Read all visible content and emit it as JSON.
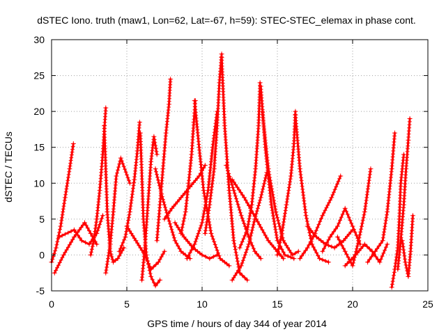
{
  "chart_data": {
    "type": "scatter",
    "title": "dSTEC Iono. truth (maw1, Lon=62, Lat=-67, h=59): STEC-STEC_elemax in phase cont.",
    "xlabel": "GPS time / hours of day 344 of year 2014",
    "ylabel": "dSTEC  / TECUs",
    "xlim": [
      0,
      25
    ],
    "ylim": [
      -5,
      30
    ],
    "xticks": [
      0,
      5,
      10,
      15,
      20,
      25
    ],
    "xtick_labels": [
      "0",
      "5",
      "10",
      "15",
      "20",
      "25"
    ],
    "yticks": [
      -5,
      0,
      5,
      10,
      15,
      20,
      25,
      30
    ],
    "ytick_labels": [
      "-5",
      "0",
      "5",
      "10",
      "15",
      "20",
      "25",
      "30"
    ],
    "grid": true,
    "legend": "none",
    "marker": "plus",
    "color": "#ff0000",
    "series": [
      {
        "x": [
          0.0,
          0.3,
          0.6,
          0.9,
          1.2,
          1.45
        ],
        "y": [
          -1.0,
          1.0,
          4.0,
          8.0,
          12.0,
          15.5
        ]
      },
      {
        "x": [
          0.2,
          0.8,
          1.5,
          2.2,
          2.6,
          3.0
        ],
        "y": [
          -2.5,
          0.0,
          2.5,
          4.5,
          3.0,
          1.5
        ]
      },
      {
        "x": [
          0.5,
          1.5,
          2.0,
          2.5,
          3.0,
          3.4
        ],
        "y": [
          2.5,
          3.5,
          2.0,
          1.5,
          3.0,
          5.5
        ]
      },
      {
        "x": [
          2.6,
          2.8,
          3.0,
          3.2,
          3.4,
          3.6
        ],
        "y": [
          0.0,
          2.0,
          5.0,
          9.0,
          14.0,
          20.5
        ]
      },
      {
        "x": [
          3.5,
          3.7,
          3.9,
          4.1,
          4.4,
          4.8
        ],
        "y": [
          18.0,
          6.0,
          0.5,
          -1.0,
          -0.5,
          1.0
        ]
      },
      {
        "x": [
          3.6,
          3.9,
          4.1,
          4.3,
          4.6,
          5.2
        ],
        "y": [
          -2.5,
          1.5,
          6.0,
          11.0,
          13.5,
          10.0
        ]
      },
      {
        "x": [
          4.5,
          4.9,
          5.2,
          5.5,
          5.7,
          5.85
        ],
        "y": [
          0.5,
          2.5,
          6.0,
          10.5,
          14.5,
          18.5
        ]
      },
      {
        "x": [
          5.9,
          6.1,
          6.3,
          6.6,
          6.9,
          7.2
        ],
        "y": [
          17.0,
          5.0,
          0.0,
          -3.0,
          -4.3,
          -3.5
        ]
      },
      {
        "x": [
          5.0,
          5.6,
          6.2,
          6.6,
          7.1,
          7.5
        ],
        "y": [
          4.0,
          2.0,
          0.0,
          -2.0,
          -1.0,
          0.5
        ]
      },
      {
        "x": [
          6.0,
          6.2,
          6.4,
          6.6,
          6.8,
          7.0
        ],
        "y": [
          -3.5,
          1.0,
          7.0,
          13.0,
          16.5,
          14.0
        ]
      },
      {
        "x": [
          7.0,
          7.2,
          7.4,
          7.6,
          7.8,
          7.9
        ],
        "y": [
          2.0,
          7.0,
          12.0,
          17.0,
          21.0,
          24.5
        ]
      },
      {
        "x": [
          6.9,
          7.3,
          7.7,
          8.2,
          8.6,
          9.2
        ],
        "y": [
          12.0,
          8.5,
          5.5,
          2.0,
          0.5,
          -0.5
        ]
      },
      {
        "x": [
          7.5,
          8.0,
          8.6,
          9.2,
          9.8,
          10.2
        ],
        "y": [
          5.0,
          6.5,
          8.0,
          9.5,
          11.0,
          12.5
        ]
      },
      {
        "x": [
          8.6,
          8.9,
          9.1,
          9.3,
          9.45,
          9.55
        ],
        "y": [
          3.0,
          6.0,
          10.0,
          14.0,
          18.5,
          21.5
        ]
      },
      {
        "x": [
          9.5,
          9.8,
          10.1,
          10.6,
          11.2,
          11.8
        ],
        "y": [
          21.5,
          15.0,
          9.0,
          3.0,
          -0.5,
          -1.5
        ]
      },
      {
        "x": [
          8.2,
          8.8,
          9.4,
          10.0,
          10.5,
          11.0
        ],
        "y": [
          4.5,
          2.5,
          1.0,
          0.0,
          -0.5,
          0.0
        ]
      },
      {
        "x": [
          9.0,
          9.5,
          10.0,
          10.4,
          10.7,
          11.0
        ],
        "y": [
          -0.5,
          1.5,
          4.5,
          9.0,
          15.0,
          20.0
        ]
      },
      {
        "x": [
          10.2,
          10.5,
          10.8,
          11.0,
          11.15,
          11.3
        ],
        "y": [
          3.0,
          7.0,
          12.0,
          18.0,
          24.0,
          28.0
        ]
      },
      {
        "x": [
          11.3,
          11.5,
          11.8,
          12.1,
          12.5,
          13.0
        ],
        "y": [
          27.5,
          18.0,
          9.0,
          2.0,
          -2.5,
          -3.5
        ]
      },
      {
        "x": [
          12.0,
          12.6,
          13.1,
          13.5,
          13.9,
          14.3
        ],
        "y": [
          -3.5,
          -1.5,
          1.5,
          5.0,
          8.0,
          11.5
        ]
      },
      {
        "x": [
          11.6,
          12.1,
          12.6,
          13.1,
          13.5,
          13.9
        ],
        "y": [
          12.5,
          9.0,
          5.5,
          2.5,
          0.5,
          -0.5
        ]
      },
      {
        "x": [
          12.5,
          13.0,
          13.3,
          13.55,
          13.75,
          13.85
        ],
        "y": [
          1.0,
          3.5,
          7.0,
          12.0,
          18.0,
          24.0
        ]
      },
      {
        "x": [
          13.9,
          14.2,
          14.6,
          15.0,
          15.5,
          16.1
        ],
        "y": [
          23.5,
          15.0,
          7.0,
          2.0,
          0.0,
          -0.5
        ]
      },
      {
        "x": [
          14.0,
          14.4,
          14.9,
          15.4,
          16.0,
          16.4
        ],
        "y": [
          20.0,
          12.0,
          6.0,
          2.0,
          0.0,
          0.5
        ]
      },
      {
        "x": [
          12.0,
          12.8,
          13.6,
          14.4,
          15.0,
          15.4
        ],
        "y": [
          10.5,
          8.0,
          5.0,
          2.0,
          0.5,
          -0.5
        ]
      },
      {
        "x": [
          15.0,
          15.3,
          15.6,
          15.9,
          16.1,
          16.2
        ],
        "y": [
          0.0,
          3.0,
          7.0,
          11.0,
          15.5,
          20.0
        ]
      },
      {
        "x": [
          16.2,
          16.5,
          16.9,
          17.3,
          17.8,
          18.4
        ],
        "y": [
          19.5,
          12.0,
          5.5,
          1.5,
          -0.5,
          -1.0
        ]
      },
      {
        "x": [
          16.5,
          17.0,
          17.5,
          18.0,
          18.6,
          19.2
        ],
        "y": [
          -0.5,
          1.0,
          3.0,
          5.5,
          8.0,
          11.0
        ]
      },
      {
        "x": [
          17.0,
          17.6,
          18.2,
          18.8,
          19.4,
          20.0
        ],
        "y": [
          4.0,
          2.5,
          1.5,
          1.0,
          2.0,
          3.5
        ]
      },
      {
        "x": [
          18.0,
          18.5,
          19.0,
          19.5,
          20.0,
          20.5
        ],
        "y": [
          0.5,
          2.5,
          4.0,
          6.5,
          4.0,
          1.5
        ]
      },
      {
        "x": [
          19.0,
          19.5,
          20.0,
          20.4,
          20.8,
          21.2
        ],
        "y": [
          2.5,
          0.5,
          -1.5,
          2.0,
          6.0,
          12.0
        ]
      },
      {
        "x": [
          19.5,
          20.2,
          20.8,
          21.3,
          21.8,
          22.3
        ],
        "y": [
          -1.5,
          0.0,
          1.5,
          0.5,
          -1.0,
          1.5
        ]
      },
      {
        "x": [
          21.0,
          21.5,
          22.0,
          22.3,
          22.6,
          22.8
        ],
        "y": [
          -1.0,
          0.5,
          2.0,
          6.0,
          12.0,
          17.0
        ]
      },
      {
        "x": [
          22.6,
          22.8,
          23.0,
          23.1,
          23.2,
          23.4
        ],
        "y": [
          -4.5,
          -2.0,
          1.0,
          5.0,
          10.0,
          14.0
        ]
      },
      {
        "x": [
          23.0,
          23.2,
          23.4,
          23.55,
          23.7,
          23.8
        ],
        "y": [
          -2.0,
          2.0,
          7.0,
          12.0,
          16.0,
          19.0
        ]
      },
      {
        "x": [
          23.3,
          23.5,
          23.7,
          23.85,
          24.0
        ],
        "y": [
          2.0,
          -1.0,
          -3.0,
          0.5,
          5.5
        ]
      }
    ]
  }
}
